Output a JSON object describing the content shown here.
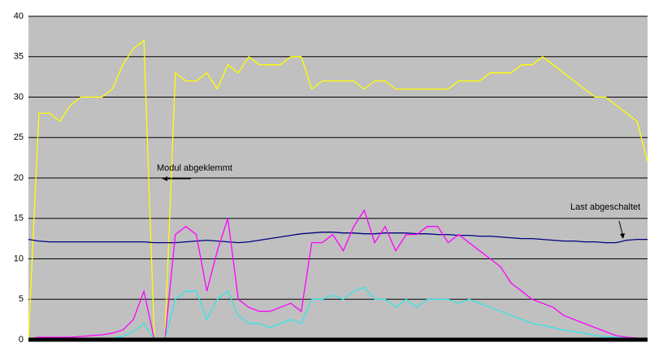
{
  "chart_data": {
    "type": "line",
    "annotations": [
      "Modul abgeklemmt",
      "Last abgeschaltet"
    ],
    "ylim": [
      0,
      40
    ],
    "yticks": [
      0,
      5,
      10,
      15,
      20,
      25,
      30,
      35,
      40
    ],
    "grid": true,
    "series": [
      {
        "color": "#ffff00",
        "values": [
          0,
          28,
          28,
          27,
          29,
          30,
          30,
          30,
          31,
          34,
          36,
          37,
          0,
          0,
          33,
          32,
          32,
          33,
          31,
          34,
          33,
          35,
          34,
          34,
          34,
          35,
          35,
          31,
          32,
          32,
          32,
          32,
          31,
          32,
          32,
          31,
          31,
          31,
          31,
          31,
          31,
          32,
          32,
          32,
          33,
          33,
          33,
          34,
          34,
          35,
          34,
          33,
          32,
          31,
          30,
          30,
          29,
          28,
          27,
          22
        ]
      },
      {
        "color": "#000080",
        "values": [
          12.4,
          12.2,
          12.1,
          12.1,
          12.1,
          12.1,
          12.1,
          12.1,
          12.1,
          12.1,
          12.1,
          12.1,
          12.0,
          12.0,
          12.0,
          12.1,
          12.2,
          12.3,
          12.2,
          12.1,
          12.0,
          12.1,
          12.3,
          12.5,
          12.7,
          12.9,
          13.1,
          13.2,
          13.3,
          13.3,
          13.2,
          13.2,
          13.1,
          13.1,
          13.2,
          13.2,
          13.2,
          13.1,
          13.1,
          13.0,
          13.0,
          12.9,
          12.9,
          12.8,
          12.8,
          12.7,
          12.6,
          12.5,
          12.5,
          12.4,
          12.3,
          12.2,
          12.2,
          12.1,
          12.1,
          12.0,
          12.0,
          12.3,
          12.4,
          12.4
        ]
      },
      {
        "color": "#ff00ff",
        "values": [
          0.1,
          0.3,
          0.3,
          0.3,
          0.3,
          0.4,
          0.5,
          0.6,
          0.8,
          1.2,
          2.5,
          6,
          0,
          0,
          13,
          14,
          13,
          6,
          11,
          15,
          5,
          4,
          3.5,
          3.5,
          4,
          4.5,
          3.5,
          12,
          12,
          13,
          11,
          14,
          16,
          12,
          14,
          11,
          13,
          13,
          14,
          14,
          12,
          13,
          12,
          11,
          10,
          9,
          7,
          6,
          5,
          4.5,
          4,
          3,
          2.5,
          2,
          1.5,
          1,
          0.5,
          0.3,
          0.2,
          0.1
        ]
      },
      {
        "color": "#33e6e6",
        "values": [
          0,
          0,
          0,
          0,
          0.1,
          0.1,
          0.1,
          0.1,
          0.2,
          0.4,
          1,
          2,
          0,
          0,
          5,
          6,
          6,
          2.5,
          5,
          6,
          3,
          2,
          2,
          1.5,
          2,
          2.5,
          2,
          5,
          5,
          5.5,
          5,
          6,
          6.5,
          5,
          5,
          4,
          5,
          4,
          5,
          5,
          5,
          4.5,
          5,
          4.5,
          4,
          3.5,
          3,
          2.5,
          2,
          1.8,
          1.5,
          1.2,
          1,
          0.8,
          0.5,
          0.4,
          0.3,
          0.2,
          0.1,
          0
        ]
      }
    ]
  }
}
